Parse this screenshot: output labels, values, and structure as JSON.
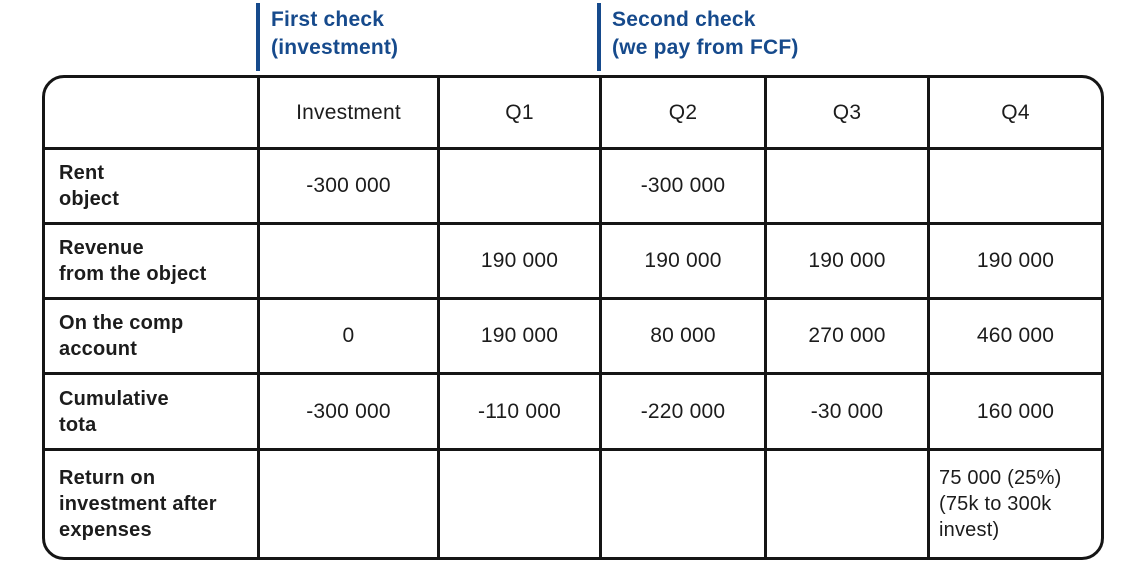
{
  "annotations": {
    "first_check": "First check\n(investment)",
    "second_check": "Second check\n(we pay from FCF)"
  },
  "table": {
    "headers": [
      "",
      "Investment",
      "Q1",
      "Q2",
      "Q3",
      "Q4"
    ],
    "rows": [
      {
        "label": "Rent\nobject",
        "cells": [
          "-300 000",
          "",
          "-300 000",
          "",
          ""
        ]
      },
      {
        "label": "Revenue\nfrom the object",
        "cells": [
          "",
          "190 000",
          "190 000",
          "190 000",
          "190 000"
        ]
      },
      {
        "label": "On the comp\naccount",
        "cells": [
          "0",
          "190 000",
          "80 000",
          "270 000",
          "460 000"
        ]
      },
      {
        "label": "Cumulative\ntota",
        "cells": [
          "-300 000",
          "-110 000",
          "-220 000",
          "-30 000",
          "160 000"
        ]
      },
      {
        "label": "Return on\ninvestment after\nexpenses",
        "cells": [
          "",
          "",
          "",
          "",
          "75 000 (25%)\n(75k to 300k\ninvest)"
        ]
      }
    ]
  },
  "colors": {
    "accent_blue": "#164a8c",
    "border_black": "#151515",
    "text_black": "#1c1c1c",
    "background": "#ffffff"
  }
}
